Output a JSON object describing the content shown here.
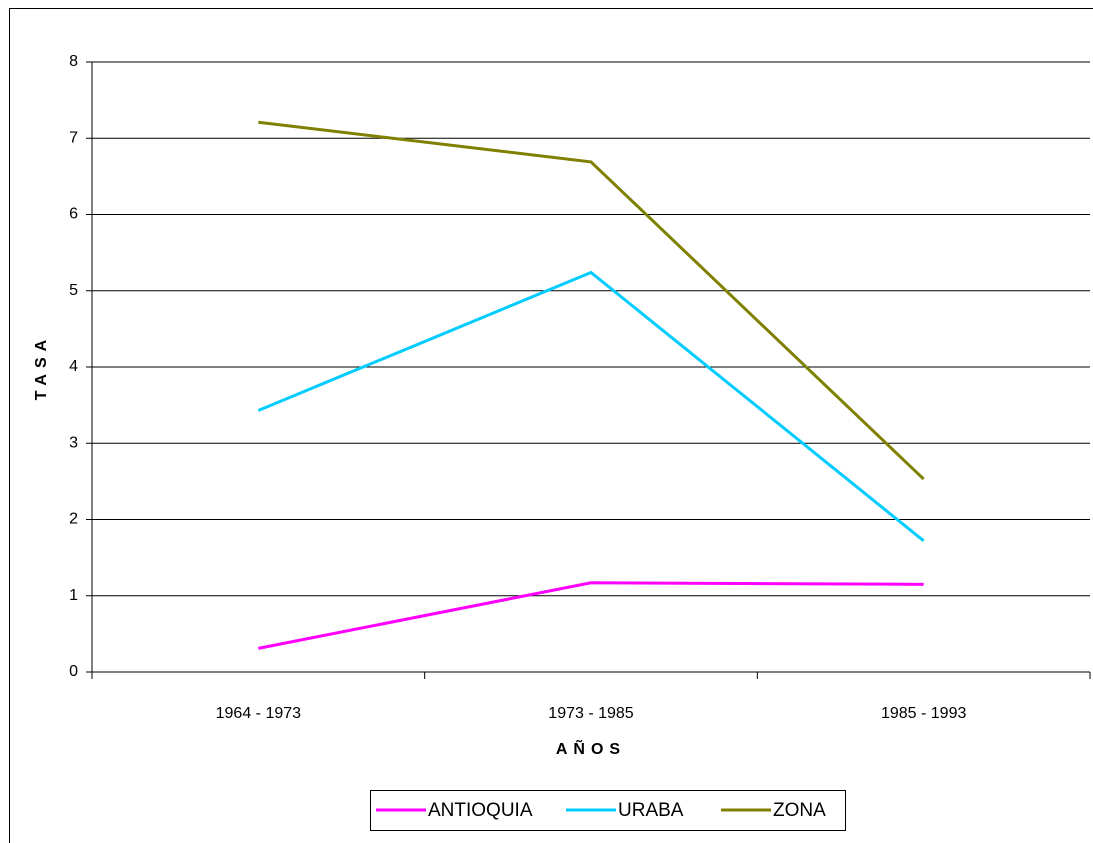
{
  "chart_data": {
    "type": "line",
    "categories": [
      "1964  - 1973",
      "1973 - 1985",
      "1985 - 1993"
    ],
    "series": [
      {
        "name": "ANTIOQUIA",
        "color": "#ff00ff",
        "values": [
          0.31,
          1.17,
          1.15
        ]
      },
      {
        "name": "URABA",
        "color": "#00ccff",
        "values": [
          3.43,
          5.24,
          1.72
        ]
      },
      {
        "name": "ZONA",
        "color": "#808000",
        "values": [
          7.21,
          6.69,
          2.53
        ]
      }
    ],
    "xlabel": "AÑOS",
    "ylabel": "TASA",
    "ylim": [
      0,
      8
    ],
    "yticks": [
      0,
      1,
      2,
      3,
      4,
      5,
      6,
      7,
      8
    ],
    "grid": true,
    "legend": "bottom"
  }
}
